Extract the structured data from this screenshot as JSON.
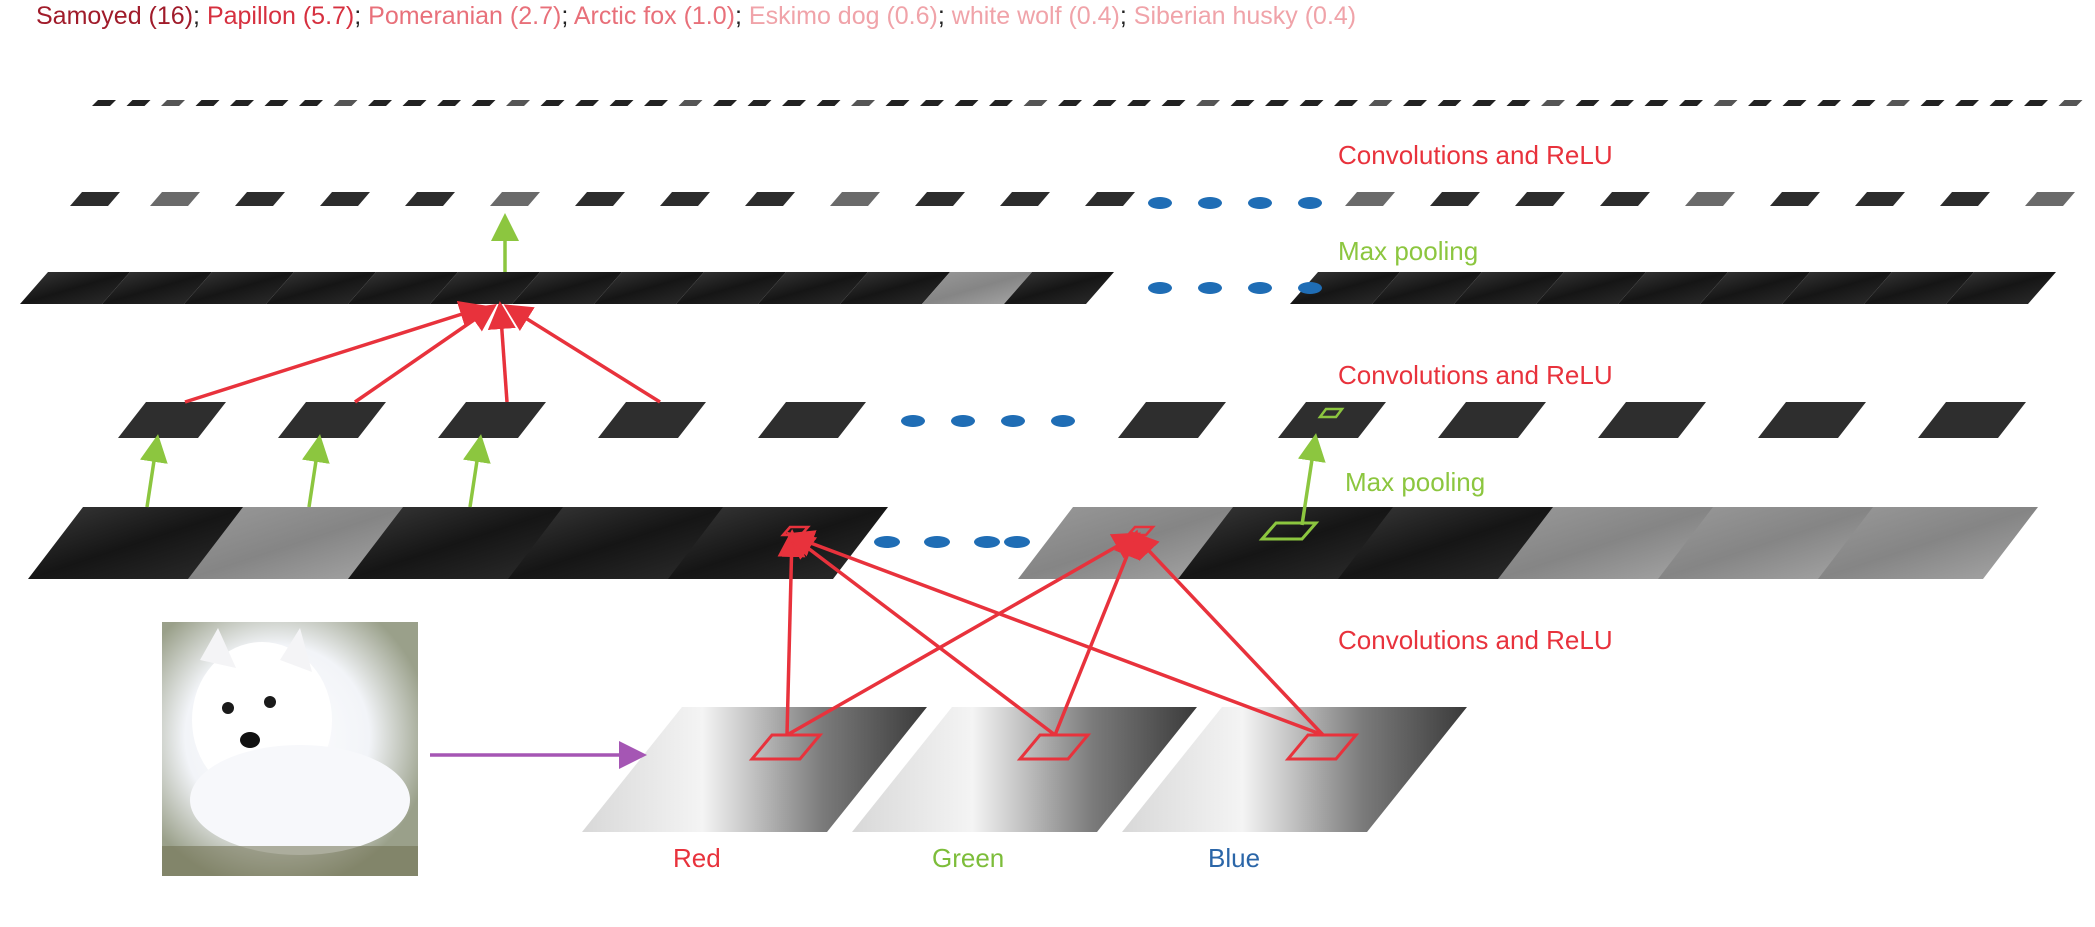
{
  "header": {
    "predictions": [
      {
        "label": "Samoyed (16)",
        "color": "#a01b2a"
      },
      {
        "label": "Papillon (5.7)",
        "color": "#d6303f"
      },
      {
        "label": "Pomeranian (2.7)",
        "color": "#e8707a"
      },
      {
        "label": "Arctic fox (1.0)",
        "color": "#e8707a"
      },
      {
        "label": "Eskimo dog (0.6)",
        "color": "#f0a3a9"
      },
      {
        "label": "white wolf (0.4)",
        "color": "#f0a3a9"
      },
      {
        "label": "Siberian husky (0.4)",
        "color": "#f0a3a9"
      }
    ],
    "separator": "; "
  },
  "labels": {
    "conv_top": "Convolutions and ReLU",
    "maxpool_top": "Max pooling",
    "conv_mid": "Convolutions and ReLU",
    "maxpool_mid": "Max pooling",
    "conv_bottom": "Convolutions and ReLU",
    "channel_red": "Red",
    "channel_green": "Green",
    "channel_blue": "Blue"
  },
  "colors": {
    "conv": "#e8323c",
    "pool": "#8cc63f",
    "ellipsis": "#1f6db5",
    "input_arrow": "#a556b4",
    "red_label": "#e8323c",
    "green_label": "#7dbd3a",
    "blue_label": "#2b66a8"
  },
  "input_image": {
    "alt": "white puppy photo",
    "icon": "dog-photo"
  }
}
